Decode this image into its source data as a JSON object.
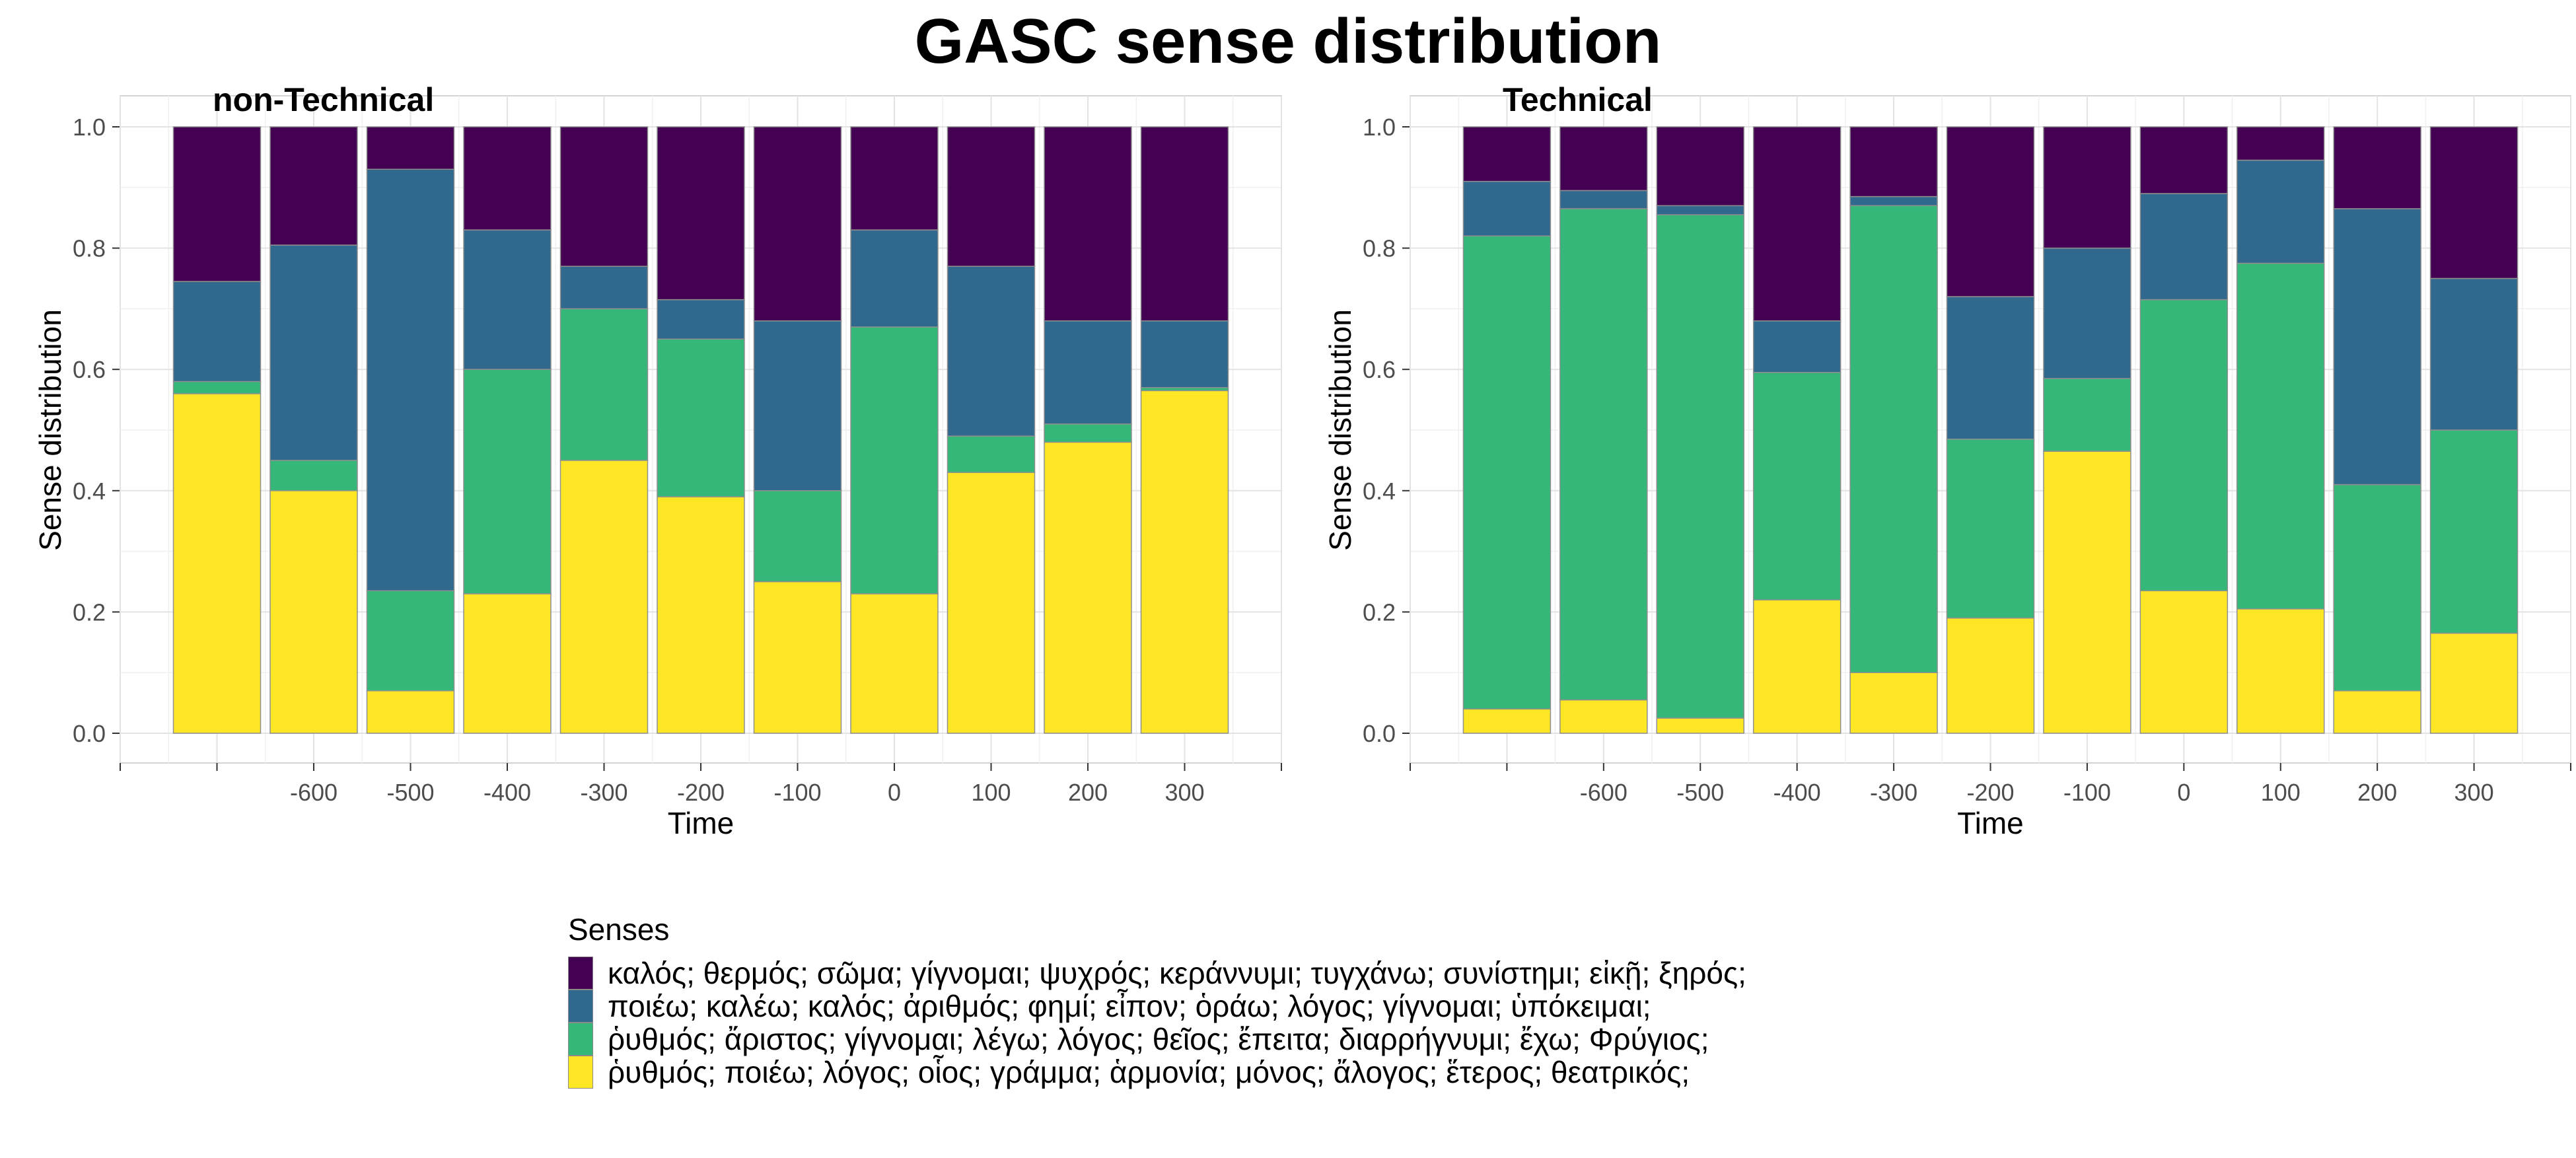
{
  "title": "GASC sense distribution",
  "chart_data": {
    "type": "bar",
    "stacked": true,
    "normalized": true,
    "xlabel": "Time",
    "ylabel": "Sense distribution",
    "ylim": [
      0,
      1
    ],
    "yticks": [
      0.0,
      0.2,
      0.4,
      0.6,
      0.8,
      1.0
    ],
    "ytick_labels": [
      "0.0",
      "0.2",
      "0.4",
      "0.6",
      "0.8",
      "1.0"
    ],
    "xlim": [
      -800,
      400
    ],
    "xticks": [
      -600,
      -500,
      -400,
      -300,
      -200,
      -100,
      0,
      100,
      200,
      300
    ],
    "xtick_labels": [
      "-600",
      "-500",
      "-400",
      "-300",
      "-200",
      "-100",
      "0",
      "100",
      "200",
      "300"
    ],
    "categories": [
      -700,
      -600,
      -500,
      -400,
      -300,
      -200,
      -100,
      0,
      100,
      200,
      300
    ],
    "grid": true,
    "legend_title": "Senses",
    "legend_position": "bottom",
    "senses": [
      {
        "label": "καλός; θερμός; σῶμα; γίγνομαι; ψυχρός; κεράννυμι; τυγχάνω; συνίστημι; εἰκῇ; ξηρός;",
        "color": "#440154"
      },
      {
        "label": "ποιέω; καλέω; καλός; ἀριθμός; φημί; εἶπον; ὁράω; λόγος; γίγνομαι; ὑπόκειμαι;",
        "color": "#31688E"
      },
      {
        "label": "ῥυθμός; ἄριστος; γίγνομαι; λέγω; λόγος; θεῖος; ἔπειτα; διαρρήγνυμι; ἔχω; Φρύγιος;",
        "color": "#35B779"
      },
      {
        "label": "ῥυθμός; ποιέω; λόγος; οἷος; γράμμα; ἁρμονία; μόνος; ἄλογος; ἕτερος; θεατρικός;",
        "color": "#FDE725"
      }
    ],
    "panels": [
      {
        "name": "non-Technical",
        "series": [
          {
            "sense": 4,
            "values": [
              0.56,
              0.4,
              0.07,
              0.23,
              0.45,
              0.39,
              0.25,
              0.23,
              0.43,
              0.48,
              0.565
            ]
          },
          {
            "sense": 3,
            "values": [
              0.02,
              0.05,
              0.165,
              0.37,
              0.25,
              0.26,
              0.15,
              0.44,
              0.06,
              0.03,
              0.005
            ]
          },
          {
            "sense": 2,
            "values": [
              0.165,
              0.355,
              0.695,
              0.23,
              0.07,
              0.065,
              0.28,
              0.16,
              0.28,
              0.17,
              0.11
            ]
          },
          {
            "sense": 1,
            "values": [
              0.255,
              0.195,
              0.07,
              0.17,
              0.23,
              0.285,
              0.32,
              0.17,
              0.23,
              0.32,
              0.32
            ]
          }
        ]
      },
      {
        "name": "Technical",
        "series": [
          {
            "sense": 4,
            "values": [
              0.04,
              0.055,
              0.025,
              0.22,
              0.1,
              0.19,
              0.465,
              0.235,
              0.205,
              0.07,
              0.165
            ]
          },
          {
            "sense": 3,
            "values": [
              0.78,
              0.81,
              0.83,
              0.375,
              0.77,
              0.295,
              0.12,
              0.48,
              0.57,
              0.34,
              0.335
            ]
          },
          {
            "sense": 2,
            "values": [
              0.09,
              0.03,
              0.015,
              0.085,
              0.015,
              0.235,
              0.215,
              0.175,
              0.17,
              0.455,
              0.25
            ]
          },
          {
            "sense": 1,
            "values": [
              0.09,
              0.105,
              0.13,
              0.32,
              0.115,
              0.28,
              0.2,
              0.11,
              0.055,
              0.135,
              0.25
            ]
          }
        ]
      }
    ]
  }
}
